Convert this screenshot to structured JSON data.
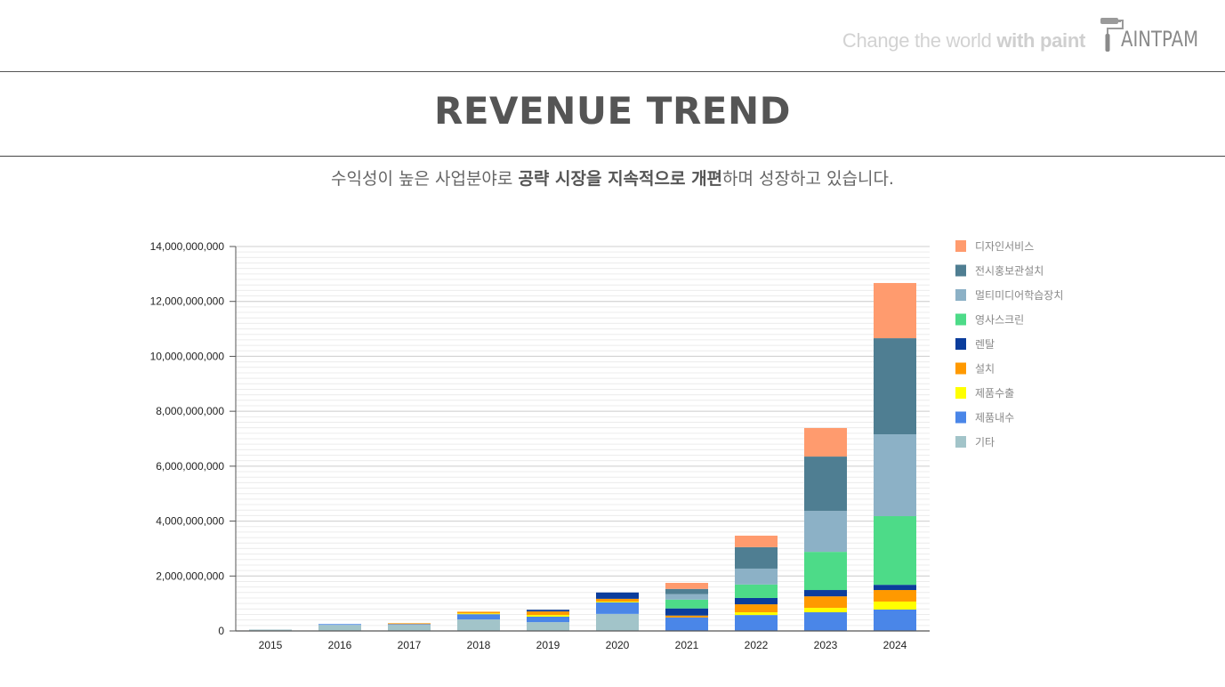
{
  "header": {
    "tagline_regular": "Change the world ",
    "tagline_bold": "with paint",
    "logo_text": "AINTPAM",
    "logo_icon": "paint-roller-icon"
  },
  "page": {
    "title": "REVENUE TREND",
    "subtitle_part1": "수익성이 높은 사업분야로 ",
    "subtitle_bold": "공략 시장을 지속적으로 개편",
    "subtitle_part2": "하며 성장하고 있습니다."
  },
  "chart_data": {
    "type": "bar",
    "stacked": true,
    "title": "",
    "xlabel": "",
    "ylabel": "",
    "ylim": [
      0,
      14000000000
    ],
    "yticks": [
      0,
      2000000000,
      4000000000,
      6000000000,
      8000000000,
      10000000000,
      12000000000,
      14000000000
    ],
    "ytick_labels": [
      "0",
      "2,000,000,000",
      "4,000,000,000",
      "6,000,000,000",
      "8,000,000,000",
      "10,000,000,000",
      "12,000,000,000",
      "14,000,000,000"
    ],
    "grid": true,
    "legend_position": "right",
    "categories": [
      "2015",
      "2016",
      "2017",
      "2018",
      "2019",
      "2020",
      "2021",
      "2022",
      "2023",
      "2024"
    ],
    "series": [
      {
        "name": "기타",
        "color": "#a2c4c9",
        "values": [
          50000000,
          220000000,
          220000000,
          420000000,
          320000000,
          620000000,
          0,
          0,
          0,
          0
        ]
      },
      {
        "name": "제품내수",
        "color": "#4a86e8",
        "values": [
          0,
          30000000,
          30000000,
          190000000,
          200000000,
          420000000,
          490000000,
          580000000,
          680000000,
          780000000
        ]
      },
      {
        "name": "제품수출",
        "color": "#ffff00",
        "values": [
          0,
          0,
          0,
          30000000,
          60000000,
          30000000,
          0,
          100000000,
          160000000,
          290000000
        ]
      },
      {
        "name": "설치",
        "color": "#ff9900",
        "values": [
          0,
          0,
          30000000,
          60000000,
          130000000,
          100000000,
          70000000,
          290000000,
          420000000,
          420000000
        ]
      },
      {
        "name": "렌탈",
        "color": "#0b3d9c",
        "values": [
          0,
          0,
          0,
          0,
          60000000,
          230000000,
          260000000,
          230000000,
          230000000,
          190000000
        ]
      },
      {
        "name": "영사스크린",
        "color": "#4ddb88",
        "values": [
          0,
          0,
          0,
          0,
          0,
          0,
          320000000,
          490000000,
          1390000000,
          2500000000
        ]
      },
      {
        "name": "멀티미디어학습장치",
        "color": "#8cb1c6",
        "values": [
          0,
          0,
          0,
          0,
          0,
          0,
          200000000,
          580000000,
          1490000000,
          2980000000
        ]
      },
      {
        "name": "전시홍보관설치",
        "color": "#4f7e92",
        "values": [
          0,
          0,
          0,
          0,
          0,
          0,
          190000000,
          780000000,
          1980000000,
          3500000000
        ]
      },
      {
        "name": "디자인서비스",
        "color": "#ff9b6e",
        "values": [
          0,
          0,
          0,
          0,
          0,
          0,
          220000000,
          420000000,
          1040000000,
          2010000000
        ]
      }
    ],
    "legend_order": [
      "디자인서비스",
      "전시홍보관설치",
      "멀티미디어학습장치",
      "영사스크린",
      "렌탈",
      "설치",
      "제품수출",
      "제품내수",
      "기타"
    ]
  }
}
